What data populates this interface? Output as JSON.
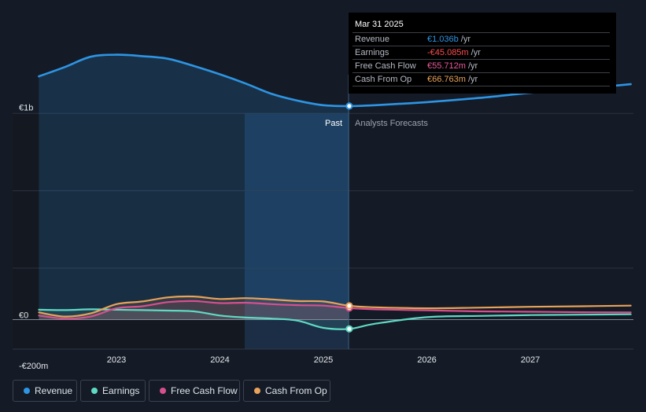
{
  "colors": {
    "revenue": "#2d95e3",
    "earnings": "#60d9c4",
    "free_cash_flow": "#d6508e",
    "cash_from_op": "#e8a25a"
  },
  "tooltip": {
    "date": "Mar 31 2025",
    "rows": [
      {
        "label": "Revenue",
        "value": "€1.036b",
        "unit": "/yr",
        "color": "#2d95e3"
      },
      {
        "label": "Earnings",
        "value": "-€45.085m",
        "unit": "/yr",
        "color": "#ff4d4d"
      },
      {
        "label": "Free Cash Flow",
        "value": "€55.712m",
        "unit": "/yr",
        "color": "#e95a9a"
      },
      {
        "label": "Cash From Op",
        "value": "€66.763m",
        "unit": "/yr",
        "color": "#e8a25a"
      }
    ]
  },
  "legend": [
    {
      "label": "Revenue",
      "color": "#2d95e3"
    },
    {
      "label": "Earnings",
      "color": "#60d9c4"
    },
    {
      "label": "Free Cash Flow",
      "color": "#d6508e"
    },
    {
      "label": "Cash From Op",
      "color": "#e8a25a"
    }
  ],
  "chart_data": {
    "type": "line",
    "y_axis_labels": [
      "€1b",
      "€0",
      "-€200m"
    ],
    "x_tick_labels": [
      "2023",
      "2024",
      "2025",
      "2026",
      "2027"
    ],
    "ylim": [
      -200,
      1000
    ],
    "past_label": "Past",
    "forecast_label": "Analysts Forecasts",
    "divider_x": 2025.25,
    "series": [
      {
        "name": "Revenue",
        "key": "revenue",
        "x": [
          2022.25,
          2022.5,
          2022.75,
          2023.0,
          2023.25,
          2023.5,
          2023.75,
          2024.0,
          2024.25,
          2024.5,
          2024.75,
          2025.0,
          2025.25,
          2025.5,
          2026.0,
          2026.5,
          2027.0,
          2027.5,
          2027.97
        ],
        "y": [
          1180,
          1225,
          1275,
          1285,
          1278,
          1265,
          1230,
          1190,
          1145,
          1095,
          1062,
          1040,
          1036,
          1040,
          1055,
          1075,
          1100,
          1120,
          1142
        ]
      },
      {
        "name": "Earnings",
        "key": "earnings",
        "x": [
          2022.25,
          2022.5,
          2022.75,
          2023.0,
          2023.25,
          2023.5,
          2023.75,
          2024.0,
          2024.25,
          2024.5,
          2024.75,
          2025.0,
          2025.25,
          2025.5,
          2026.0,
          2026.5,
          2027.0,
          2027.5,
          2027.97
        ],
        "y": [
          48,
          46,
          50,
          48,
          46,
          44,
          40,
          20,
          10,
          5,
          -5,
          -40,
          -45,
          -20,
          12,
          18,
          22,
          24,
          26
        ]
      },
      {
        "name": "Free Cash Flow",
        "key": "free_cash_flow",
        "x": [
          2022.25,
          2022.5,
          2022.75,
          2023.0,
          2023.25,
          2023.5,
          2023.75,
          2024.0,
          2024.25,
          2024.5,
          2024.75,
          2025.0,
          2025.25,
          2025.5,
          2026.0,
          2026.5,
          2027.0,
          2027.5,
          2027.97
        ],
        "y": [
          20,
          5,
          15,
          55,
          65,
          85,
          90,
          80,
          82,
          75,
          70,
          68,
          56,
          50,
          45,
          40,
          38,
          36,
          35
        ]
      },
      {
        "name": "Cash From Op",
        "key": "cash_from_op",
        "x": [
          2022.25,
          2022.5,
          2022.75,
          2023.0,
          2023.25,
          2023.5,
          2023.75,
          2024.0,
          2024.25,
          2024.5,
          2024.75,
          2025.0,
          2025.25,
          2025.5,
          2026.0,
          2026.5,
          2027.0,
          2027.5,
          2027.97
        ],
        "y": [
          35,
          15,
          30,
          75,
          88,
          108,
          112,
          100,
          104,
          98,
          90,
          88,
          67,
          60,
          55,
          58,
          62,
          65,
          68
        ]
      }
    ]
  }
}
